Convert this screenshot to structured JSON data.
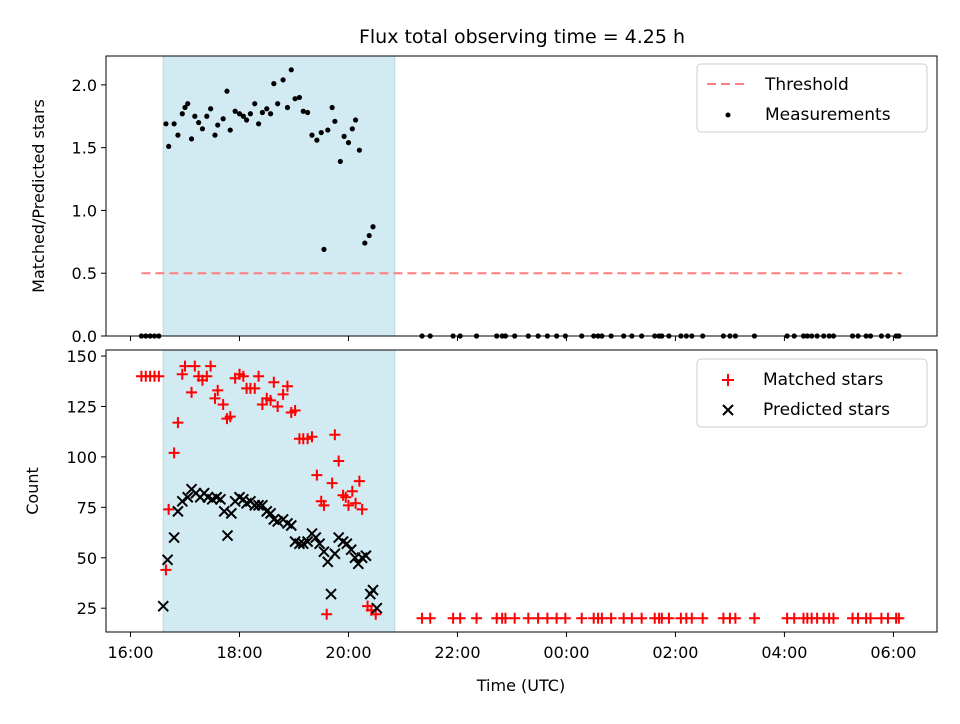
{
  "figure_title": "Flux total observing time = 4.25 h",
  "chart_data": [
    {
      "type": "scatter",
      "panel": "top",
      "xlabel": "",
      "ylabel": "Matched/Predicted stars",
      "x_ticks": [
        "16:00",
        "18:00",
        "20:00",
        "22:00",
        "00:00",
        "02:00",
        "04:00",
        "06:00"
      ],
      "x_tick_hours": [
        16,
        18,
        20,
        22,
        24,
        26,
        28,
        30
      ],
      "xlim_hours": [
        15.55,
        30.8
      ],
      "ylim": [
        0,
        2.23
      ],
      "y_ticks": [
        0.0,
        0.5,
        1.0,
        1.5,
        2.0
      ],
      "y_tick_labels": [
        "0.0",
        "0.5",
        "1.0",
        "1.5",
        "2.0"
      ],
      "shaded_span_hours": [
        16.6,
        20.85
      ],
      "legend_position": "top-right",
      "legend": [
        {
          "label": "Threshold",
          "kind": "dashed-line",
          "color": "#ff7f7f"
        },
        {
          "label": "Measurements",
          "kind": "dot",
          "color": "#000000"
        }
      ],
      "threshold": {
        "value": 0.5,
        "x_start_hours": 16.2,
        "x_end_hours": 30.15
      },
      "measurements": [
        [
          16.2,
          0
        ],
        [
          16.28,
          0
        ],
        [
          16.36,
          0
        ],
        [
          16.44,
          0
        ],
        [
          16.52,
          0
        ],
        [
          16.65,
          1.69
        ],
        [
          16.7,
          1.51
        ],
        [
          16.8,
          1.69
        ],
        [
          16.87,
          1.6
        ],
        [
          16.95,
          1.77
        ],
        [
          17.0,
          1.82
        ],
        [
          17.05,
          1.85
        ],
        [
          17.12,
          1.57
        ],
        [
          17.18,
          1.75
        ],
        [
          17.25,
          1.7
        ],
        [
          17.32,
          1.65
        ],
        [
          17.4,
          1.75
        ],
        [
          17.47,
          1.81
        ],
        [
          17.55,
          1.6
        ],
        [
          17.6,
          1.68
        ],
        [
          17.7,
          1.73
        ],
        [
          17.77,
          1.95
        ],
        [
          17.83,
          1.64
        ],
        [
          17.92,
          1.79
        ],
        [
          18.0,
          1.77
        ],
        [
          18.07,
          1.75
        ],
        [
          18.13,
          1.72
        ],
        [
          18.2,
          1.77
        ],
        [
          18.28,
          1.85
        ],
        [
          18.35,
          1.69
        ],
        [
          18.42,
          1.78
        ],
        [
          18.5,
          1.81
        ],
        [
          18.57,
          1.77
        ],
        [
          18.63,
          2.01
        ],
        [
          18.7,
          1.85
        ],
        [
          18.8,
          2.04
        ],
        [
          18.88,
          1.82
        ],
        [
          18.95,
          2.12
        ],
        [
          19.02,
          1.89
        ],
        [
          19.1,
          1.9
        ],
        [
          19.17,
          1.79
        ],
        [
          19.25,
          1.78
        ],
        [
          19.33,
          1.6
        ],
        [
          19.42,
          1.56
        ],
        [
          19.5,
          1.62
        ],
        [
          19.55,
          0.69
        ],
        [
          19.62,
          1.64
        ],
        [
          19.7,
          1.82
        ],
        [
          19.75,
          1.71
        ],
        [
          19.85,
          1.39
        ],
        [
          19.92,
          1.59
        ],
        [
          20.0,
          1.54
        ],
        [
          20.07,
          1.65
        ],
        [
          20.13,
          1.72
        ],
        [
          20.2,
          1.48
        ],
        [
          20.3,
          0.74
        ],
        [
          20.38,
          0.8
        ],
        [
          20.45,
          0.87
        ],
        [
          21.35,
          0
        ],
        [
          21.5,
          0
        ],
        [
          21.92,
          0
        ],
        [
          22.05,
          0
        ],
        [
          22.35,
          0
        ],
        [
          22.72,
          0
        ],
        [
          22.82,
          0
        ],
        [
          22.88,
          0
        ],
        [
          23.05,
          0
        ],
        [
          23.3,
          0
        ],
        [
          23.48,
          0
        ],
        [
          23.65,
          0
        ],
        [
          23.82,
          0
        ],
        [
          23.98,
          0
        ],
        [
          24.28,
          0
        ],
        [
          24.5,
          0
        ],
        [
          24.58,
          0
        ],
        [
          24.65,
          0
        ],
        [
          24.82,
          0
        ],
        [
          25.05,
          0
        ],
        [
          25.2,
          0
        ],
        [
          25.38,
          0
        ],
        [
          25.62,
          0
        ],
        [
          25.7,
          0
        ],
        [
          25.75,
          0
        ],
        [
          25.88,
          0
        ],
        [
          26.1,
          0
        ],
        [
          26.2,
          0
        ],
        [
          26.3,
          0
        ],
        [
          26.5,
          0
        ],
        [
          26.88,
          0
        ],
        [
          27.0,
          0
        ],
        [
          27.1,
          0
        ],
        [
          27.45,
          0
        ],
        [
          28.05,
          0
        ],
        [
          28.18,
          0
        ],
        [
          28.35,
          0
        ],
        [
          28.42,
          0
        ],
        [
          28.5,
          0
        ],
        [
          28.6,
          0
        ],
        [
          28.72,
          0
        ],
        [
          28.82,
          0
        ],
        [
          28.9,
          0
        ],
        [
          29.25,
          0
        ],
        [
          29.35,
          0
        ],
        [
          29.5,
          0
        ],
        [
          29.58,
          0
        ],
        [
          29.78,
          0
        ],
        [
          29.9,
          0
        ],
        [
          30.05,
          0
        ],
        [
          30.1,
          0
        ]
      ]
    },
    {
      "type": "scatter",
      "panel": "bottom",
      "xlabel": "Time (UTC)",
      "ylabel": "Count",
      "x_ticks": [
        "16:00",
        "18:00",
        "20:00",
        "22:00",
        "00:00",
        "02:00",
        "04:00",
        "06:00"
      ],
      "x_tick_hours": [
        16,
        18,
        20,
        22,
        24,
        26,
        28,
        30
      ],
      "xlim_hours": [
        15.55,
        30.8
      ],
      "ylim": [
        13.2,
        153
      ],
      "y_ticks": [
        25,
        50,
        75,
        100,
        125,
        150
      ],
      "y_tick_labels": [
        "25",
        "50",
        "75",
        "100",
        "125",
        "150"
      ],
      "shaded_span_hours": [
        16.6,
        20.85
      ],
      "legend_position": "top-right",
      "legend": [
        {
          "label": "Matched stars",
          "kind": "plus",
          "color": "#ff0000"
        },
        {
          "label": "Predicted stars",
          "kind": "x",
          "color": "#000000"
        }
      ],
      "series": [
        {
          "name": "Matched stars",
          "marker": "plus",
          "color": "#ff0000",
          "points": [
            [
              16.2,
              140
            ],
            [
              16.28,
              140
            ],
            [
              16.36,
              140
            ],
            [
              16.44,
              140
            ],
            [
              16.52,
              140
            ],
            [
              16.65,
              44
            ],
            [
              16.7,
              74
            ],
            [
              16.8,
              102
            ],
            [
              16.87,
              117
            ],
            [
              16.95,
              141
            ],
            [
              17.0,
              145
            ],
            [
              17.12,
              132
            ],
            [
              17.18,
              145
            ],
            [
              17.25,
              140
            ],
            [
              17.32,
              138
            ],
            [
              17.4,
              140
            ],
            [
              17.47,
              145
            ],
            [
              17.55,
              129
            ],
            [
              17.6,
              133
            ],
            [
              17.7,
              126
            ],
            [
              17.77,
              119
            ],
            [
              17.83,
              120
            ],
            [
              17.92,
              139
            ],
            [
              18.0,
              141
            ],
            [
              18.07,
              140
            ],
            [
              18.13,
              134
            ],
            [
              18.2,
              134
            ],
            [
              18.28,
              134
            ],
            [
              18.35,
              140
            ],
            [
              18.42,
              126
            ],
            [
              18.5,
              129
            ],
            [
              18.57,
              128
            ],
            [
              18.63,
              137
            ],
            [
              18.7,
              125
            ],
            [
              18.8,
              131
            ],
            [
              18.88,
              135
            ],
            [
              18.95,
              122
            ],
            [
              19.02,
              123
            ],
            [
              19.1,
              109
            ],
            [
              19.17,
              109
            ],
            [
              19.25,
              109
            ],
            [
              19.33,
              110
            ],
            [
              19.42,
              91
            ],
            [
              19.5,
              78
            ],
            [
              19.55,
              76
            ],
            [
              19.6,
              22
            ],
            [
              19.7,
              87
            ],
            [
              19.75,
              111
            ],
            [
              19.82,
              98
            ],
            [
              19.9,
              81
            ],
            [
              19.95,
              80
            ],
            [
              20.0,
              76
            ],
            [
              20.07,
              83
            ],
            [
              20.13,
              77
            ],
            [
              20.2,
              88
            ],
            [
              20.25,
              74
            ],
            [
              20.35,
              26
            ],
            [
              20.42,
              24
            ],
            [
              20.5,
              22
            ],
            [
              21.35,
              20
            ],
            [
              21.5,
              20
            ],
            [
              21.92,
              20
            ],
            [
              22.05,
              20
            ],
            [
              22.35,
              20
            ],
            [
              22.72,
              20
            ],
            [
              22.82,
              20
            ],
            [
              22.88,
              20
            ],
            [
              23.05,
              20
            ],
            [
              23.3,
              20
            ],
            [
              23.48,
              20
            ],
            [
              23.65,
              20
            ],
            [
              23.82,
              20
            ],
            [
              23.98,
              20
            ],
            [
              24.28,
              20
            ],
            [
              24.5,
              20
            ],
            [
              24.58,
              20
            ],
            [
              24.65,
              20
            ],
            [
              24.82,
              20
            ],
            [
              25.05,
              20
            ],
            [
              25.2,
              20
            ],
            [
              25.38,
              20
            ],
            [
              25.62,
              20
            ],
            [
              25.7,
              20
            ],
            [
              25.75,
              20
            ],
            [
              25.88,
              20
            ],
            [
              26.1,
              20
            ],
            [
              26.2,
              20
            ],
            [
              26.3,
              20
            ],
            [
              26.5,
              20
            ],
            [
              26.88,
              20
            ],
            [
              27.0,
              20
            ],
            [
              27.1,
              20
            ],
            [
              27.45,
              20
            ],
            [
              28.05,
              20
            ],
            [
              28.18,
              20
            ],
            [
              28.35,
              20
            ],
            [
              28.42,
              20
            ],
            [
              28.5,
              20
            ],
            [
              28.6,
              20
            ],
            [
              28.72,
              20
            ],
            [
              28.82,
              20
            ],
            [
              28.9,
              20
            ],
            [
              29.25,
              20
            ],
            [
              29.35,
              20
            ],
            [
              29.5,
              20
            ],
            [
              29.58,
              20
            ],
            [
              29.78,
              20
            ],
            [
              29.9,
              20
            ],
            [
              30.05,
              20
            ],
            [
              30.1,
              20
            ]
          ]
        },
        {
          "name": "Predicted stars",
          "marker": "x",
          "color": "#000000",
          "points": [
            [
              16.6,
              26
            ],
            [
              16.68,
              49
            ],
            [
              16.8,
              60
            ],
            [
              16.87,
              73
            ],
            [
              16.95,
              78
            ],
            [
              17.05,
              80
            ],
            [
              17.12,
              84
            ],
            [
              17.2,
              82
            ],
            [
              17.28,
              80
            ],
            [
              17.35,
              82
            ],
            [
              17.42,
              80
            ],
            [
              17.5,
              79
            ],
            [
              17.58,
              80
            ],
            [
              17.65,
              79
            ],
            [
              17.72,
              73
            ],
            [
              17.78,
              61
            ],
            [
              17.85,
              72
            ],
            [
              17.92,
              78
            ],
            [
              18.0,
              80
            ],
            [
              18.07,
              79
            ],
            [
              18.13,
              77
            ],
            [
              18.2,
              78
            ],
            [
              18.28,
              76
            ],
            [
              18.35,
              76
            ],
            [
              18.42,
              76
            ],
            [
              18.5,
              73
            ],
            [
              18.57,
              72
            ],
            [
              18.63,
              69
            ],
            [
              18.7,
              68
            ],
            [
              18.8,
              69
            ],
            [
              18.88,
              67
            ],
            [
              18.95,
              66
            ],
            [
              19.02,
              58
            ],
            [
              19.1,
              57
            ],
            [
              19.17,
              57
            ],
            [
              19.25,
              58
            ],
            [
              19.33,
              62
            ],
            [
              19.4,
              60
            ],
            [
              19.47,
              57
            ],
            [
              19.55,
              53
            ],
            [
              19.62,
              48
            ],
            [
              19.68,
              32
            ],
            [
              19.75,
              52
            ],
            [
              19.82,
              60
            ],
            [
              19.9,
              58
            ],
            [
              19.97,
              57
            ],
            [
              20.05,
              54
            ],
            [
              20.12,
              50
            ],
            [
              20.18,
              47
            ],
            [
              20.25,
              50
            ],
            [
              20.32,
              51
            ],
            [
              20.4,
              32
            ],
            [
              20.45,
              34
            ],
            [
              20.52,
              25
            ]
          ]
        }
      ]
    }
  ]
}
